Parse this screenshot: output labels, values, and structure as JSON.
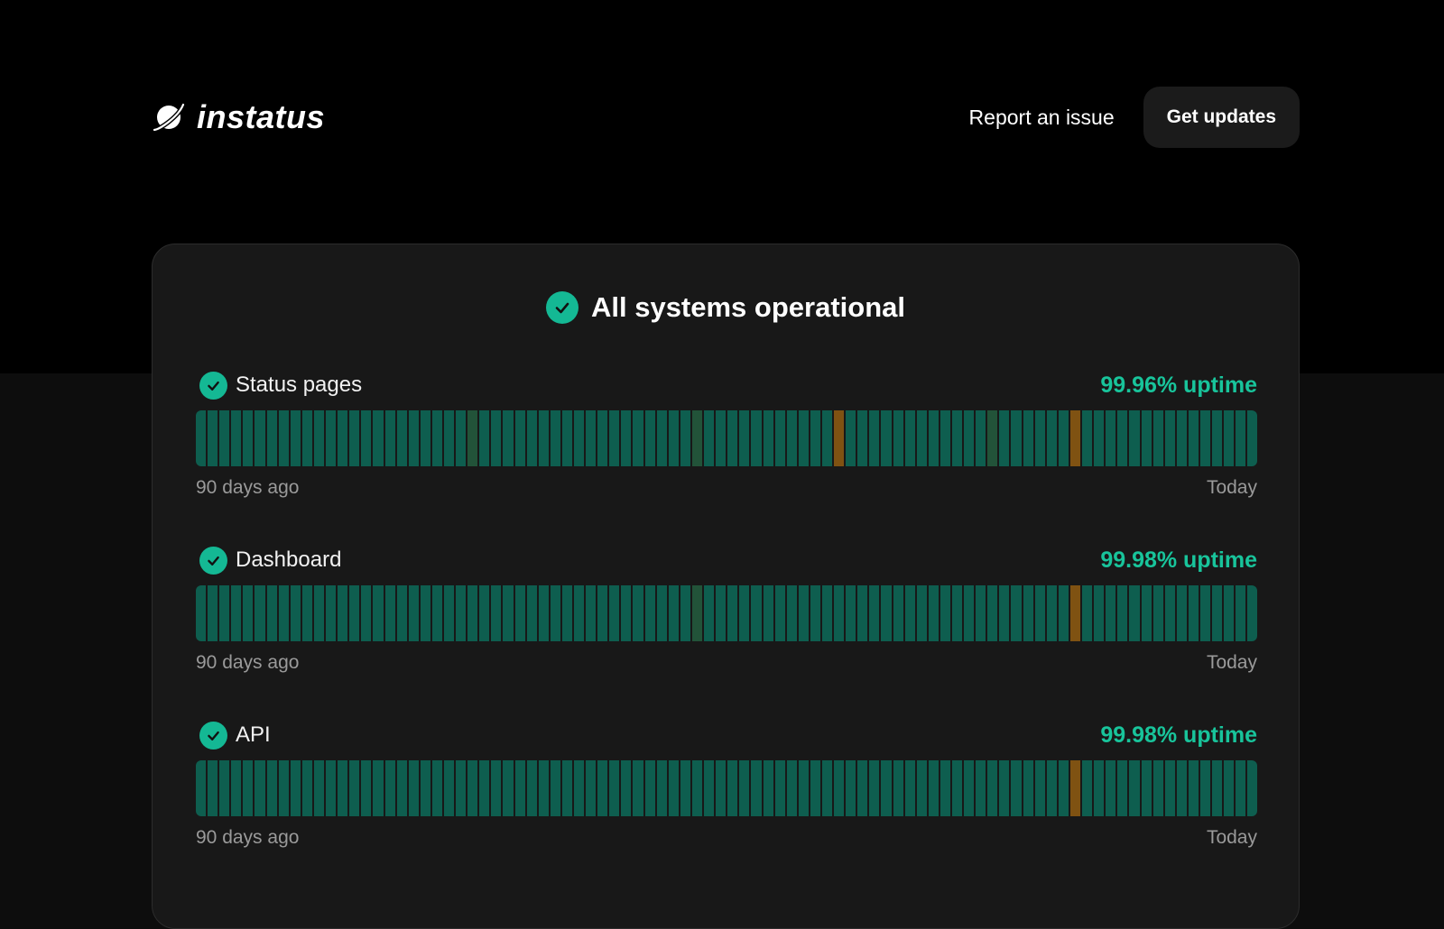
{
  "brand": {
    "name": "instatus",
    "logo_icon": "planet-icon"
  },
  "nav": {
    "report_label": "Report an issue",
    "updates_label": "Get updates"
  },
  "overall": {
    "status_text": "All systems operational",
    "icon": "check-circle-icon"
  },
  "colors": {
    "operational": "#0e5e4f",
    "partial": "#225339",
    "minor": "#7f5212",
    "accent": "#14b894",
    "uptime_text": "#18c49b"
  },
  "components": [
    {
      "name": "Status pages",
      "uptime": "99.96% uptime",
      "days": 90,
      "partial_days": [
        23,
        42,
        67
      ],
      "minor_days": [
        54,
        74
      ],
      "start_label": "90 days ago",
      "end_label": "Today"
    },
    {
      "name": "Dashboard",
      "uptime": "99.98% uptime",
      "days": 90,
      "partial_days": [
        42
      ],
      "minor_days": [
        74
      ],
      "start_label": "90 days ago",
      "end_label": "Today"
    },
    {
      "name": "API",
      "uptime": "99.98% uptime",
      "days": 90,
      "partial_days": [],
      "minor_days": [
        74
      ],
      "start_label": "90 days ago",
      "end_label": "Today"
    }
  ]
}
